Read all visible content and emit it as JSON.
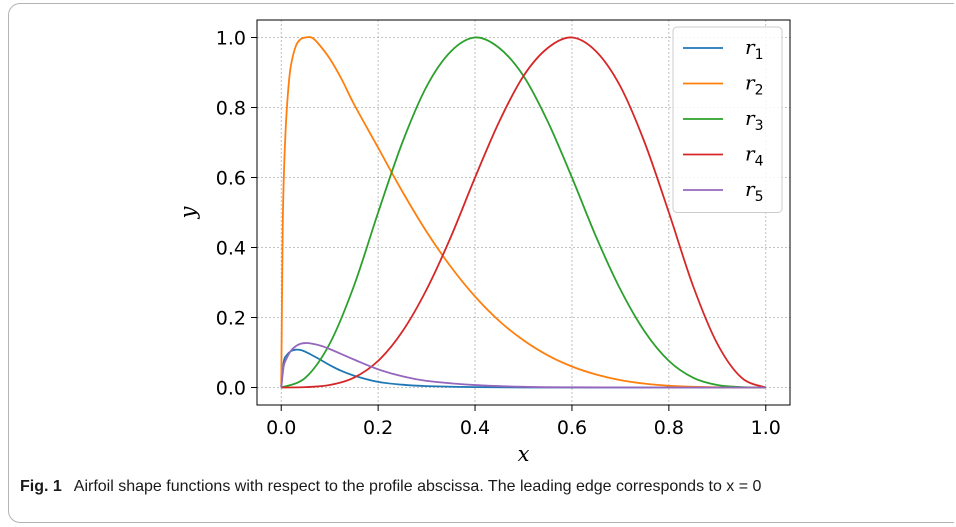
{
  "caption": {
    "label": "Fig. 1",
    "text": "Airfoil shape functions with respect to the profile abscissa. The leading edge corresponds to x = 0"
  },
  "chart_data": {
    "type": "line",
    "xlabel": "x",
    "ylabel": "y",
    "xlim": [
      -0.05,
      1.05
    ],
    "ylim": [
      -0.05,
      1.05
    ],
    "xticks": [
      "0.0",
      "0.2",
      "0.4",
      "0.6",
      "0.8",
      "1.0"
    ],
    "yticks": [
      "0.0",
      "0.2",
      "0.4",
      "0.6",
      "0.8",
      "1.0"
    ],
    "grid": true,
    "legend_position": "top-right",
    "series": [
      {
        "name": "r",
        "sub": "1",
        "color": "#1f77b4",
        "x": [
          0,
          0.005,
          0.01,
          0.02,
          0.03,
          0.04,
          0.05,
          0.06,
          0.08,
          0.1,
          0.12,
          0.15,
          0.2,
          0.25,
          0.3,
          0.4,
          0.5,
          0.6,
          0.8,
          1.0
        ],
        "y": [
          0,
          0.072,
          0.09,
          0.104,
          0.108,
          0.107,
          0.102,
          0.095,
          0.08,
          0.064,
          0.05,
          0.034,
          0.016,
          0.008,
          0.004,
          0.001,
          0,
          0,
          0,
          0
        ]
      },
      {
        "name": "r",
        "sub": "2",
        "color": "#ff7f0e",
        "x": [
          0,
          0.003,
          0.006,
          0.01,
          0.015,
          0.02,
          0.03,
          0.04,
          0.05,
          0.0625,
          0.075,
          0.1,
          0.125,
          0.15,
          0.2,
          0.25,
          0.3,
          0.35,
          0.4,
          0.45,
          0.5,
          0.55,
          0.6,
          0.65,
          0.7,
          0.75,
          0.8,
          0.85,
          0.9,
          0.95,
          1.0
        ],
        "y": [
          0,
          0.45,
          0.63,
          0.76,
          0.86,
          0.92,
          0.975,
          0.995,
          1.0,
          1.0,
          0.985,
          0.94,
          0.88,
          0.81,
          0.685,
          0.56,
          0.445,
          0.345,
          0.26,
          0.19,
          0.135,
          0.092,
          0.06,
          0.037,
          0.021,
          0.011,
          0.005,
          0.002,
          0.0005,
          0,
          0
        ]
      },
      {
        "name": "r",
        "sub": "3",
        "color": "#2ca02c",
        "x": [
          0,
          0.05,
          0.1,
          0.15,
          0.2,
          0.25,
          0.3,
          0.35,
          0.4,
          0.45,
          0.5,
          0.55,
          0.6,
          0.65,
          0.7,
          0.75,
          0.8,
          0.85,
          0.9,
          0.95,
          1.0
        ],
        "y": [
          0,
          0.028,
          0.125,
          0.29,
          0.5,
          0.7,
          0.86,
          0.96,
          1.0,
          0.97,
          0.89,
          0.76,
          0.6,
          0.43,
          0.28,
          0.16,
          0.076,
          0.028,
          0.007,
          0.001,
          0
        ]
      },
      {
        "name": "r",
        "sub": "4",
        "color": "#d62728",
        "x": [
          0,
          0.05,
          0.1,
          0.15,
          0.2,
          0.25,
          0.3,
          0.35,
          0.4,
          0.45,
          0.5,
          0.55,
          0.6,
          0.65,
          0.7,
          0.75,
          0.8,
          0.85,
          0.9,
          0.95,
          1.0
        ],
        "y": [
          0,
          0.001,
          0.007,
          0.028,
          0.076,
          0.16,
          0.28,
          0.43,
          0.6,
          0.76,
          0.89,
          0.97,
          1.0,
          0.96,
          0.86,
          0.7,
          0.5,
          0.29,
          0.125,
          0.028,
          0
        ]
      },
      {
        "name": "r",
        "sub": "5",
        "color": "#9467bd",
        "x": [
          0,
          0.005,
          0.01,
          0.02,
          0.03,
          0.04,
          0.05,
          0.06,
          0.08,
          0.1,
          0.15,
          0.2,
          0.25,
          0.3,
          0.4,
          0.5,
          0.6,
          0.8,
          1.0
        ],
        "y": [
          0,
          0.06,
          0.08,
          0.105,
          0.118,
          0.125,
          0.127,
          0.126,
          0.12,
          0.11,
          0.08,
          0.052,
          0.032,
          0.019,
          0.007,
          0.002,
          0.0005,
          0,
          0
        ]
      }
    ]
  }
}
